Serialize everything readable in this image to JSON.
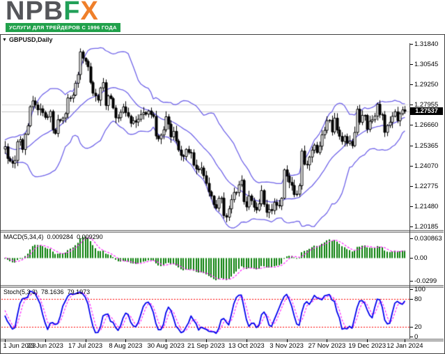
{
  "logo": {
    "npb": "NPB",
    "f": "F",
    "x": "X",
    "tagline": "УСЛУГИ ДЛЯ ТРЕЙДЕРОВ С 1996 ГОДА"
  },
  "chart_data": {
    "type": "candlestick",
    "symbol_label": "GBPUSD,Daily",
    "symbol": "GBPUSD",
    "timeframe": "Daily",
    "price_axis_labels": [
      "1.31840",
      "1.30545",
      "1.29250",
      "1.27955",
      "1.26660",
      "1.25365",
      "1.24070",
      "1.22775",
      "1.21480",
      "1.20185"
    ],
    "price_view": {
      "top": 1.3184,
      "bottom": 1.20185
    },
    "gridline_price": 1.27955,
    "bid": {
      "label": "1.27537",
      "value": 1.27537
    },
    "date_ticks": [
      {
        "label": "1 Jun 2023",
        "bar": 0
      },
      {
        "label": "23 Jun 2023",
        "bar": 16
      },
      {
        "label": "17 Jul 2023",
        "bar": 32
      },
      {
        "label": "8 Aug 2023",
        "bar": 48
      },
      {
        "label": "30 Aug 2023",
        "bar": 64
      },
      {
        "label": "21 Sep 2023",
        "bar": 80
      },
      {
        "label": "13 Oct 2023",
        "bar": 96
      },
      {
        "label": "3 Nov 2023",
        "bar": 112
      },
      {
        "label": "27 Nov 2023",
        "bar": 128
      },
      {
        "label": "19 Dec 2023",
        "bar": 144
      },
      {
        "label": "12 Jan 2024",
        "bar": 159
      }
    ],
    "closes": [
      1.2528,
      1.2452,
      1.2436,
      1.2422,
      1.244,
      1.2559,
      1.2573,
      1.251,
      1.2607,
      1.2661,
      1.2783,
      1.282,
      1.2794,
      1.2763,
      1.277,
      1.2745,
      1.2715,
      1.2718,
      1.2753,
      1.2636,
      1.2612,
      1.27,
      1.2694,
      1.2711,
      1.2739,
      1.2839,
      1.2837,
      1.2857,
      1.2933,
      1.2988,
      1.3133,
      1.3092,
      1.3073,
      1.3038,
      1.2938,
      1.2869,
      1.2853,
      1.2825,
      1.2903,
      1.2937,
      1.2791,
      1.2852,
      1.2836,
      1.2775,
      1.2712,
      1.2713,
      1.2748,
      1.2782,
      1.2745,
      1.2722,
      1.2677,
      1.2694,
      1.2685,
      1.2703,
      1.2733,
      1.2745,
      1.2735,
      1.2756,
      1.2733,
      1.2721,
      1.2596,
      1.2578,
      1.2602,
      1.2636,
      1.2719,
      1.2672,
      1.259,
      1.2626,
      1.2564,
      1.2507,
      1.2472,
      1.2465,
      1.2511,
      1.2491,
      1.249,
      1.241,
      1.2385,
      1.238,
      1.2392,
      1.2343,
      1.2294,
      1.224,
      1.2213,
      1.2158,
      1.2135,
      1.2199,
      1.22,
      1.2088,
      1.2078,
      1.2131,
      1.219,
      1.2236,
      1.2235,
      1.2285,
      1.2313,
      1.2177,
      1.2143,
      1.2214,
      1.2183,
      1.2141,
      1.2124,
      1.2163,
      1.2248,
      1.216,
      1.2108,
      1.2127,
      1.212,
      1.2173,
      1.2153,
      1.215,
      1.2199,
      1.238,
      1.234,
      1.23,
      1.2281,
      1.2222,
      1.2225,
      1.2279,
      1.25,
      1.2415,
      1.2412,
      1.2462,
      1.2506,
      1.2538,
      1.249,
      1.2531,
      1.2604,
      1.2632,
      1.2694,
      1.2697,
      1.2622,
      1.271,
      1.2634,
      1.2594,
      1.2561,
      1.2593,
      1.2549,
      1.2562,
      1.2534,
      1.2619,
      1.2767,
      1.2683,
      1.2728,
      1.2728,
      1.2638,
      1.269,
      1.27,
      1.2723,
      1.2799,
      1.2733,
      1.2731,
      1.2619,
      1.2663,
      1.2684,
      1.2722,
      1.2751,
      1.2693,
      1.2738,
      1.2763,
      1.2754
    ],
    "bollinger": {
      "period": 20,
      "deviation": 2
    },
    "macd": {
      "name": "MACD(5,34,4)",
      "fast": 5,
      "slow": 34,
      "signal_period": 4,
      "value_main": "0.009284",
      "value_signal": "0.009290",
      "axis_labels": [
        "0.030863",
        "0.00",
        "-0.0299"
      ]
    },
    "stoch": {
      "name": "Stoch(5,3,3)",
      "k": 5,
      "d": 3,
      "slowing": 3,
      "value_main": "78.1636",
      "value_signal": "79.1973",
      "axis_labels": [
        100,
        80,
        20,
        0
      ],
      "levels": [
        80,
        20
      ]
    },
    "colors": {
      "bollinger": "#6e62e8",
      "bull": "#ffffff",
      "bear": "#000000",
      "wick": "#000000",
      "macd_histogram": "#077d07",
      "macd_signal": "#ff22ff",
      "stoch_main": "#0000ee",
      "stoch_signal": "#ff22ff",
      "levels": "#ff0000",
      "grid": "#dcdcdc",
      "bid_line": "#c4c4c4",
      "tagline_bg": "#21a14b",
      "logo_green": "#21a058",
      "logo_orange": "#ef7f2a"
    }
  }
}
